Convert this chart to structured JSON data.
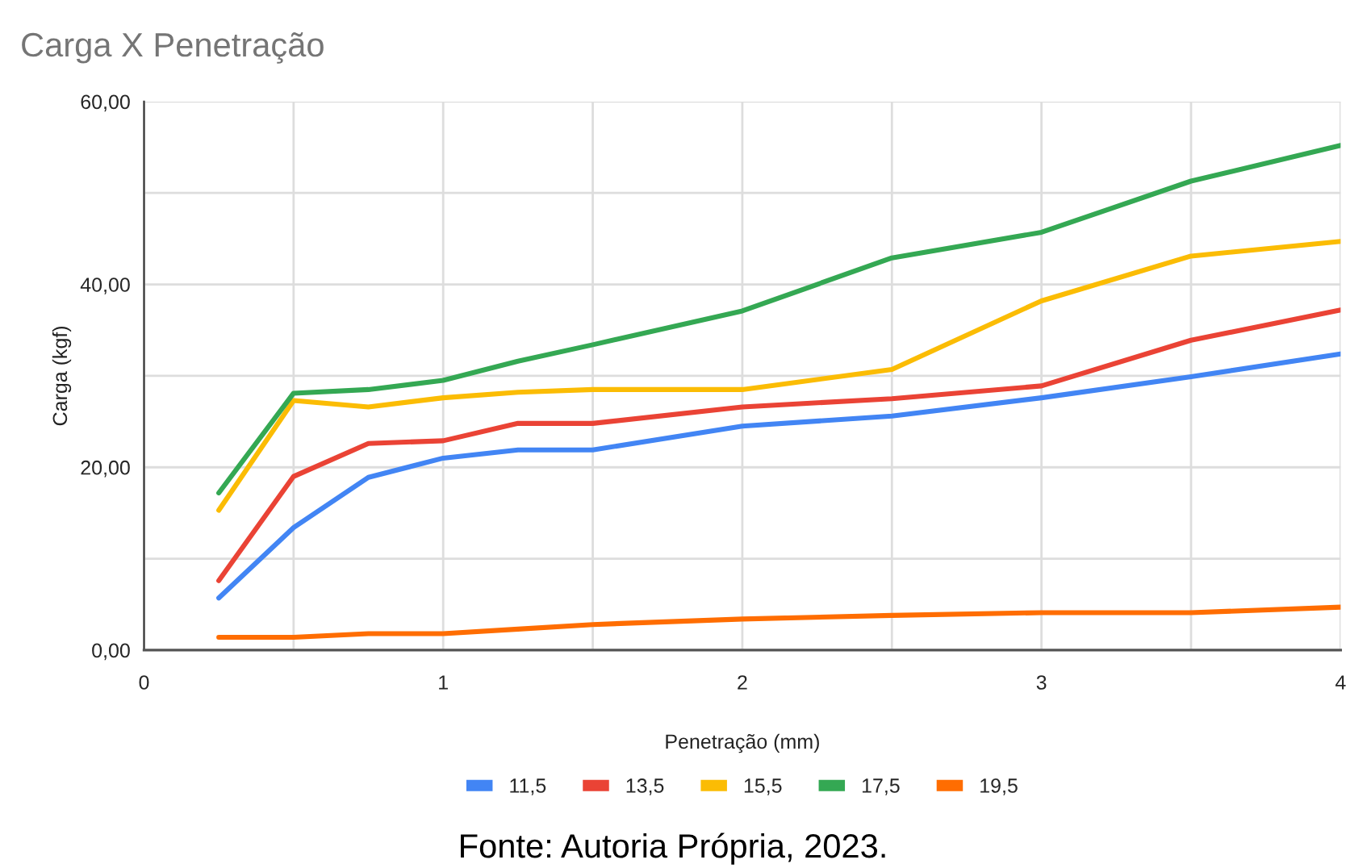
{
  "chart_data": {
    "type": "line",
    "title": "Carga X Penetração",
    "xlabel": "Penetração (mm)",
    "ylabel": "Carga (kgf)",
    "x": [
      0.25,
      0.5,
      0.75,
      1,
      1.25,
      1.5,
      2,
      2.5,
      3,
      3.5,
      4
    ],
    "series": [
      {
        "name": "11,5",
        "color": "#4285f4",
        "values": [
          5.7,
          13.4,
          18.9,
          21.0,
          21.9,
          21.9,
          24.5,
          25.6,
          27.6,
          29.9,
          32.4
        ]
      },
      {
        "name": "13,5",
        "color": "#ea4335",
        "values": [
          7.6,
          19.0,
          22.6,
          22.9,
          24.8,
          24.8,
          26.6,
          27.5,
          28.9,
          33.9,
          37.2
        ]
      },
      {
        "name": "15,5",
        "color": "#fbbc04",
        "values": [
          15.3,
          27.3,
          26.6,
          27.6,
          28.2,
          28.5,
          28.5,
          30.7,
          38.2,
          43.1,
          44.7
        ]
      },
      {
        "name": "17,5",
        "color": "#34a853",
        "values": [
          17.2,
          28.1,
          28.5,
          29.5,
          31.6,
          33.4,
          37.1,
          42.9,
          45.7,
          51.3,
          55.2
        ]
      },
      {
        "name": "19,5",
        "color": "#ff6d01",
        "values": [
          1.4,
          1.4,
          1.8,
          1.8,
          2.3,
          2.8,
          3.4,
          3.8,
          4.1,
          4.1,
          4.7
        ]
      }
    ],
    "xlim": [
      0,
      4
    ],
    "ylim": [
      0,
      60
    ],
    "xticks": [
      0,
      {
        "value": 0.5,
        "label": null
      },
      1,
      {
        "value": 1.5,
        "label": null
      },
      2,
      {
        "value": 2.5,
        "label": null
      },
      3,
      {
        "value": 3.5,
        "label": null
      },
      4
    ],
    "yticks": [
      {
        "value": 0,
        "label": "0,00"
      },
      {
        "value": 10,
        "label": null
      },
      {
        "value": 20,
        "label": "20,00"
      },
      {
        "value": 30,
        "label": null
      },
      {
        "value": 40,
        "label": "40,00"
      },
      {
        "value": 50,
        "label": null
      },
      {
        "value": 60,
        "label": "60,00"
      }
    ],
    "grid": true,
    "legend": "bottom",
    "line_style": "solid",
    "marker": "none",
    "annotations": [
      "Fonte: Autoria Própria, 2023."
    ]
  }
}
